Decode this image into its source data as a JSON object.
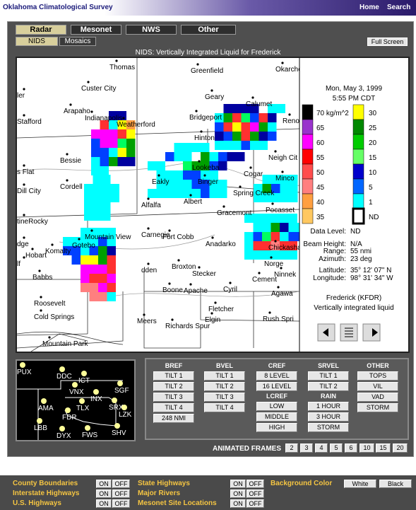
{
  "header": {
    "title": "Oklahoma Climatological Survey",
    "links": [
      "Home",
      "Search"
    ]
  },
  "tabs": [
    "Radar",
    "Mesonet",
    "NWS",
    "Other"
  ],
  "subtabs": [
    "NIDS",
    "Mosaics"
  ],
  "full_screen": "Full Screen",
  "map": {
    "title": "NIDS:  Vertically Integrated Liquid for Frederick",
    "places": [
      "Thomas",
      "Greenfield",
      "Okarche",
      "Custer City",
      "Geary",
      "Calumet",
      "ler",
      "Arapaho",
      "Indianapolis",
      "Stafford",
      "Weatherford",
      "Bridgeport",
      "Reno",
      "Hinton",
      "Bessie",
      "Lookeba",
      "Neigh Cit",
      "s Flat",
      "Cogar",
      "Minco",
      "Binger",
      "Spring Creek",
      "Eakly",
      "Cordell",
      "Dill City",
      "Albert",
      "Alfalfa",
      "Gracemont",
      "Pocasset",
      "tineRocky",
      "Mountain View",
      "Carnegie",
      "Fort Cobb",
      "Anadarko",
      "Gotebo",
      "dge",
      "Komalty",
      "Hobart",
      "Chickasha",
      "lf",
      "Norge",
      "dden",
      "Broxton",
      "Stecker",
      "Ninnek",
      "Babbs",
      "Cement",
      "Boone",
      "Apache",
      "Cyril",
      "Agawa",
      "Roosevelt",
      "Fletcher",
      "Elgin",
      "Meers",
      "Cold Springs",
      "Rush Spri",
      "Richards Spur",
      "Mountain Park"
    ]
  },
  "legend": {
    "date": "Mon, May 3, 1999",
    "time": "5:55 PM CDT",
    "left": [
      "70 kg/m^2",
      "65",
      "60",
      "55",
      "50",
      "45",
      "40",
      "35"
    ],
    "right": [
      "30",
      "25",
      "20",
      "15",
      "10",
      "5",
      "1",
      "ND"
    ],
    "info": [
      [
        "Data Level:",
        "ND"
      ],
      [
        "Beam Height:",
        "N/A"
      ],
      [
        "Range:",
        "55 nmi"
      ],
      [
        "Azimuth:",
        "23 deg"
      ],
      [
        "Latitude:",
        "35° 12' 07\" N"
      ],
      [
        "Longitude:",
        "98° 31' 34\" W"
      ]
    ],
    "station": "Frederick (KFDR)",
    "product": "Vertically integrated liquid"
  },
  "stations": [
    "PUX",
    "DDC",
    "ICT",
    "VNX",
    "INX",
    "SGF",
    "AMA",
    "TLX",
    "SRX",
    "FDR",
    "LZK",
    "LBB",
    "DYX",
    "FWS",
    "SHV"
  ],
  "products": [
    [
      {
        "title": "BREF",
        "buttons": [
          "TILT 1",
          "TILT 2",
          "TILT 3",
          "TILT 4",
          "248 NMI"
        ]
      }
    ],
    [
      {
        "title": "BVEL",
        "buttons": [
          "TILT 1",
          "TILT 2",
          "TILT 3",
          "TILT 4"
        ]
      }
    ],
    [
      {
        "title": "CREF",
        "buttons": [
          "8 LEVEL",
          "16 LEVEL"
        ]
      },
      {
        "title": "LCREF",
        "buttons": [
          "LOW",
          "MIDDLE",
          "HIGH"
        ]
      }
    ],
    [
      {
        "title": "SRVEL",
        "buttons": [
          "TILT 1",
          "TILT 2"
        ]
      },
      {
        "title": "RAIN",
        "buttons": [
          "1 HOUR",
          "3 HOUR",
          "STORM"
        ]
      }
    ],
    [
      {
        "title": "OTHER",
        "buttons": [
          "TOPS",
          "VIL",
          "VAD",
          "STORM"
        ]
      }
    ]
  ],
  "animated_frames": {
    "label": "ANIMATED FRAMES",
    "frames": [
      "2",
      "3",
      "4",
      "5",
      "6",
      "10",
      "15",
      "20"
    ]
  },
  "overlays": [
    {
      "label": "County Boundaries",
      "on": "ON",
      "off": "OFF"
    },
    {
      "label": "Interstate Highways",
      "on": "ON",
      "off": "OFF"
    },
    {
      "label": "U.S. Highways",
      "on": "ON",
      "off": "OFF"
    },
    {
      "label": "State Highways",
      "on": "ON",
      "off": "OFF"
    },
    {
      "label": "Major Rivers",
      "on": "ON",
      "off": "OFF"
    },
    {
      "label": "Mesonet Site Locations",
      "on": "ON",
      "off": "OFF"
    }
  ],
  "background": {
    "label": "Background Color",
    "options": [
      "White",
      "Black"
    ]
  }
}
